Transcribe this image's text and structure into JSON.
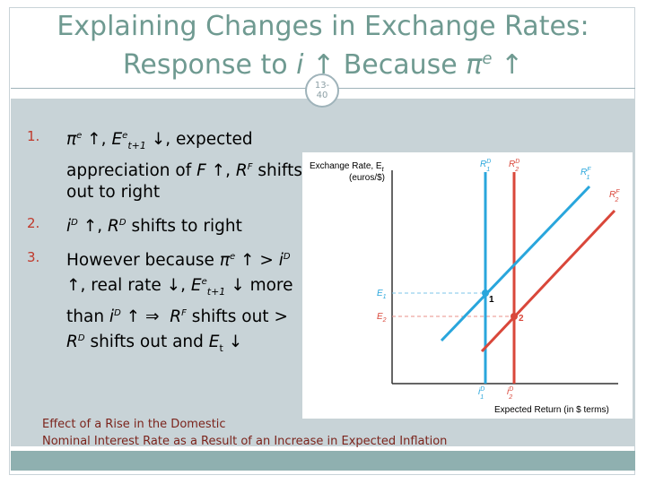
{
  "slide": {
    "title_line1": "Explaining Changes in Exchange Rates:",
    "title_line2_a": "Response to ",
    "title_line2_i": "i",
    "title_line2_b": " ↑ Because ",
    "title_line2_pi": "π",
    "title_line2_e": "e",
    "title_line2_c": " ↑",
    "page_number_top": "13-",
    "page_number_bottom": "40"
  },
  "list": {
    "n1": "1.",
    "n2": "2.",
    "n3": "3."
  },
  "caption": {
    "line1": "Effect of a Rise in the Domestic",
    "line2": "Nominal Interest Rate as a Result of an Increase in Expected Inflation"
  },
  "diagram": {
    "y_label_line1": "Exchange Rate, E",
    "y_label_line2": "(euros/$)",
    "x_label": "Expected Return (in $ terms)",
    "e1": "E",
    "e1_sub": "1",
    "e2": "E",
    "e2_sub": "2",
    "pt1": "1",
    "pt2": "2",
    "rd1": "R",
    "rd2": "R",
    "rf1": "R",
    "rf2": "R",
    "i1": "i",
    "i2": "i",
    "colors": {
      "blue": "#29a6dc",
      "red": "#d9473a",
      "axis": "#333333",
      "dashed_blue": "#7cc6e8",
      "dashed_red": "#e9908a"
    }
  }
}
